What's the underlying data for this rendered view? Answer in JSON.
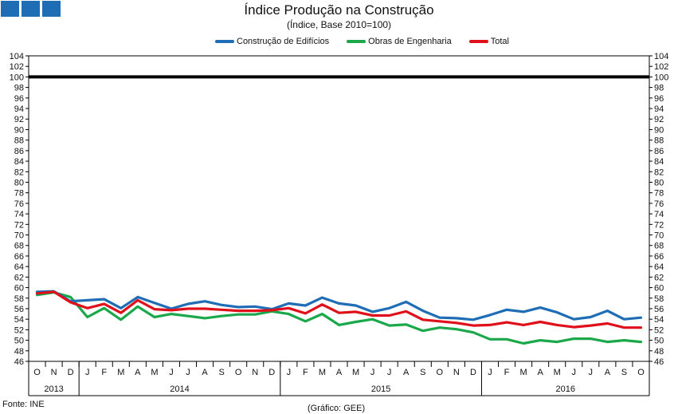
{
  "title": "Índice Produção na Construção",
  "subtitle": "(Índice, Base 2010=100)",
  "source": "Fonte: INE",
  "credit": "(Gráfico: GEE)",
  "colors": {
    "construcao": "#1f6db5",
    "obras": "#1aa84a",
    "total": "#e0101a",
    "reference": "#000000",
    "logo": "#1f6db5"
  },
  "chart_data": {
    "type": "line",
    "ylim": [
      46,
      104
    ],
    "yticks_step": 2,
    "yaxis": "left and right",
    "grid": false,
    "legend_position": "top-center",
    "x_months": [
      "O",
      "N",
      "D",
      "J",
      "F",
      "M",
      "A",
      "M",
      "J",
      "J",
      "A",
      "S",
      "O",
      "N",
      "D",
      "J",
      "F",
      "M",
      "A",
      "M",
      "J",
      "J",
      "A",
      "S",
      "O",
      "N",
      "D",
      "J",
      "F",
      "M",
      "A",
      "M",
      "J",
      "J",
      "A",
      "S",
      "O"
    ],
    "x_years": [
      {
        "label": "2013",
        "start": 0,
        "end": 2
      },
      {
        "label": "2014",
        "start": 3,
        "end": 14
      },
      {
        "label": "2015",
        "start": 15,
        "end": 26
      },
      {
        "label": "2016",
        "start": 27,
        "end": 36
      }
    ],
    "reference_line": 100,
    "series": [
      {
        "name": "Construção de Edifícios",
        "color_key": "construcao",
        "values": [
          59.2,
          59.3,
          57.4,
          57.6,
          57.8,
          56.1,
          58.2,
          57.1,
          56.0,
          56.9,
          57.4,
          56.7,
          56.3,
          56.4,
          55.9,
          57.0,
          56.6,
          58.1,
          57.0,
          56.6,
          55.4,
          56.1,
          57.3,
          55.6,
          54.3,
          54.2,
          53.9,
          54.8,
          55.8,
          55.4,
          56.2,
          55.3,
          54.0,
          54.4,
          55.6,
          54.0,
          54.3
        ]
      },
      {
        "name": "Obras de Engenharia",
        "color_key": "obras",
        "values": [
          58.6,
          59.1,
          58.2,
          54.4,
          56.1,
          53.9,
          56.4,
          54.4,
          55.0,
          54.6,
          54.2,
          54.6,
          54.9,
          54.9,
          55.5,
          55.0,
          53.6,
          55.0,
          52.9,
          53.5,
          54.0,
          52.8,
          53.0,
          51.8,
          52.4,
          52.1,
          51.5,
          50.2,
          50.2,
          49.4,
          50.0,
          49.7,
          50.3,
          50.3,
          49.7,
          50.0,
          49.7
        ]
      },
      {
        "name": "Total",
        "color_key": "total",
        "values": [
          58.9,
          59.2,
          57.2,
          56.1,
          56.9,
          55.2,
          57.6,
          55.9,
          55.7,
          56.0,
          56.0,
          55.8,
          55.6,
          55.6,
          55.7,
          56.1,
          55.1,
          56.8,
          55.2,
          55.4,
          54.7,
          54.7,
          55.5,
          53.9,
          53.6,
          53.3,
          52.8,
          52.9,
          53.4,
          52.9,
          53.5,
          52.9,
          52.5,
          52.8,
          53.2,
          52.4,
          52.4
        ]
      }
    ]
  }
}
